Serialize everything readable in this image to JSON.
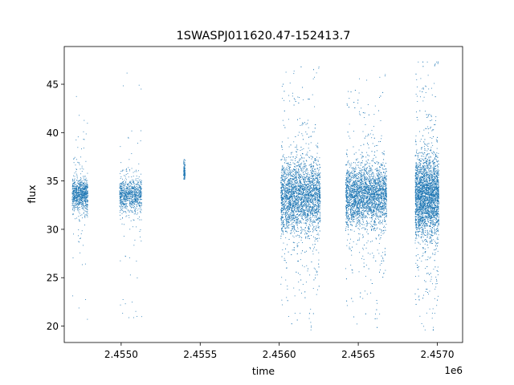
{
  "chart_data": {
    "type": "scatter",
    "title": "1SWASPJ011620.47-152413.7",
    "xlabel": "time",
    "ylabel": "flux",
    "x_offset_label": "1e6",
    "xlim": [
      2454640,
      2457160
    ],
    "ylim": [
      18.3,
      48.9
    ],
    "x_ticks": [
      {
        "value": 2455000,
        "label": "2.4550"
      },
      {
        "value": 2455500,
        "label": "2.4555"
      },
      {
        "value": 2456000,
        "label": "2.4560"
      },
      {
        "value": 2456500,
        "label": "2.4565"
      },
      {
        "value": 2457000,
        "label": "2.4570"
      }
    ],
    "y_ticks": [
      {
        "value": 20,
        "label": "20"
      },
      {
        "value": 25,
        "label": "25"
      },
      {
        "value": 30,
        "label": "30"
      },
      {
        "value": 35,
        "label": "35"
      },
      {
        "value": 40,
        "label": "40"
      },
      {
        "value": 45,
        "label": "45"
      }
    ],
    "grid": false,
    "marker_color": "#1f77b4",
    "seasons": [
      {
        "x_range": [
          2454690,
          2454790
        ],
        "center": 33.6,
        "spread": 0.8,
        "min": 20.5,
        "max": 44.5,
        "density": "medium"
      },
      {
        "x_range": [
          2454990,
          2455130
        ],
        "center": 33.5,
        "spread": 0.8,
        "min": 19.6,
        "max": 46.6,
        "density": "medium"
      },
      {
        "x_range": [
          2455395,
          2455405
        ],
        "center": 36.0,
        "spread": 0.5,
        "min": 35.2,
        "max": 37.2,
        "density": "sparse"
      },
      {
        "x_range": [
          2456010,
          2456260
        ],
        "center": 33.4,
        "spread": 1.8,
        "min": 19.6,
        "max": 46.8,
        "density": "dense"
      },
      {
        "x_range": [
          2456420,
          2456680
        ],
        "center": 33.5,
        "spread": 1.5,
        "min": 19.6,
        "max": 46.0,
        "density": "dense"
      },
      {
        "x_range": [
          2456860,
          2457010
        ],
        "center": 33.4,
        "spread": 2.0,
        "min": 19.6,
        "max": 47.3,
        "density": "dense"
      }
    ]
  }
}
